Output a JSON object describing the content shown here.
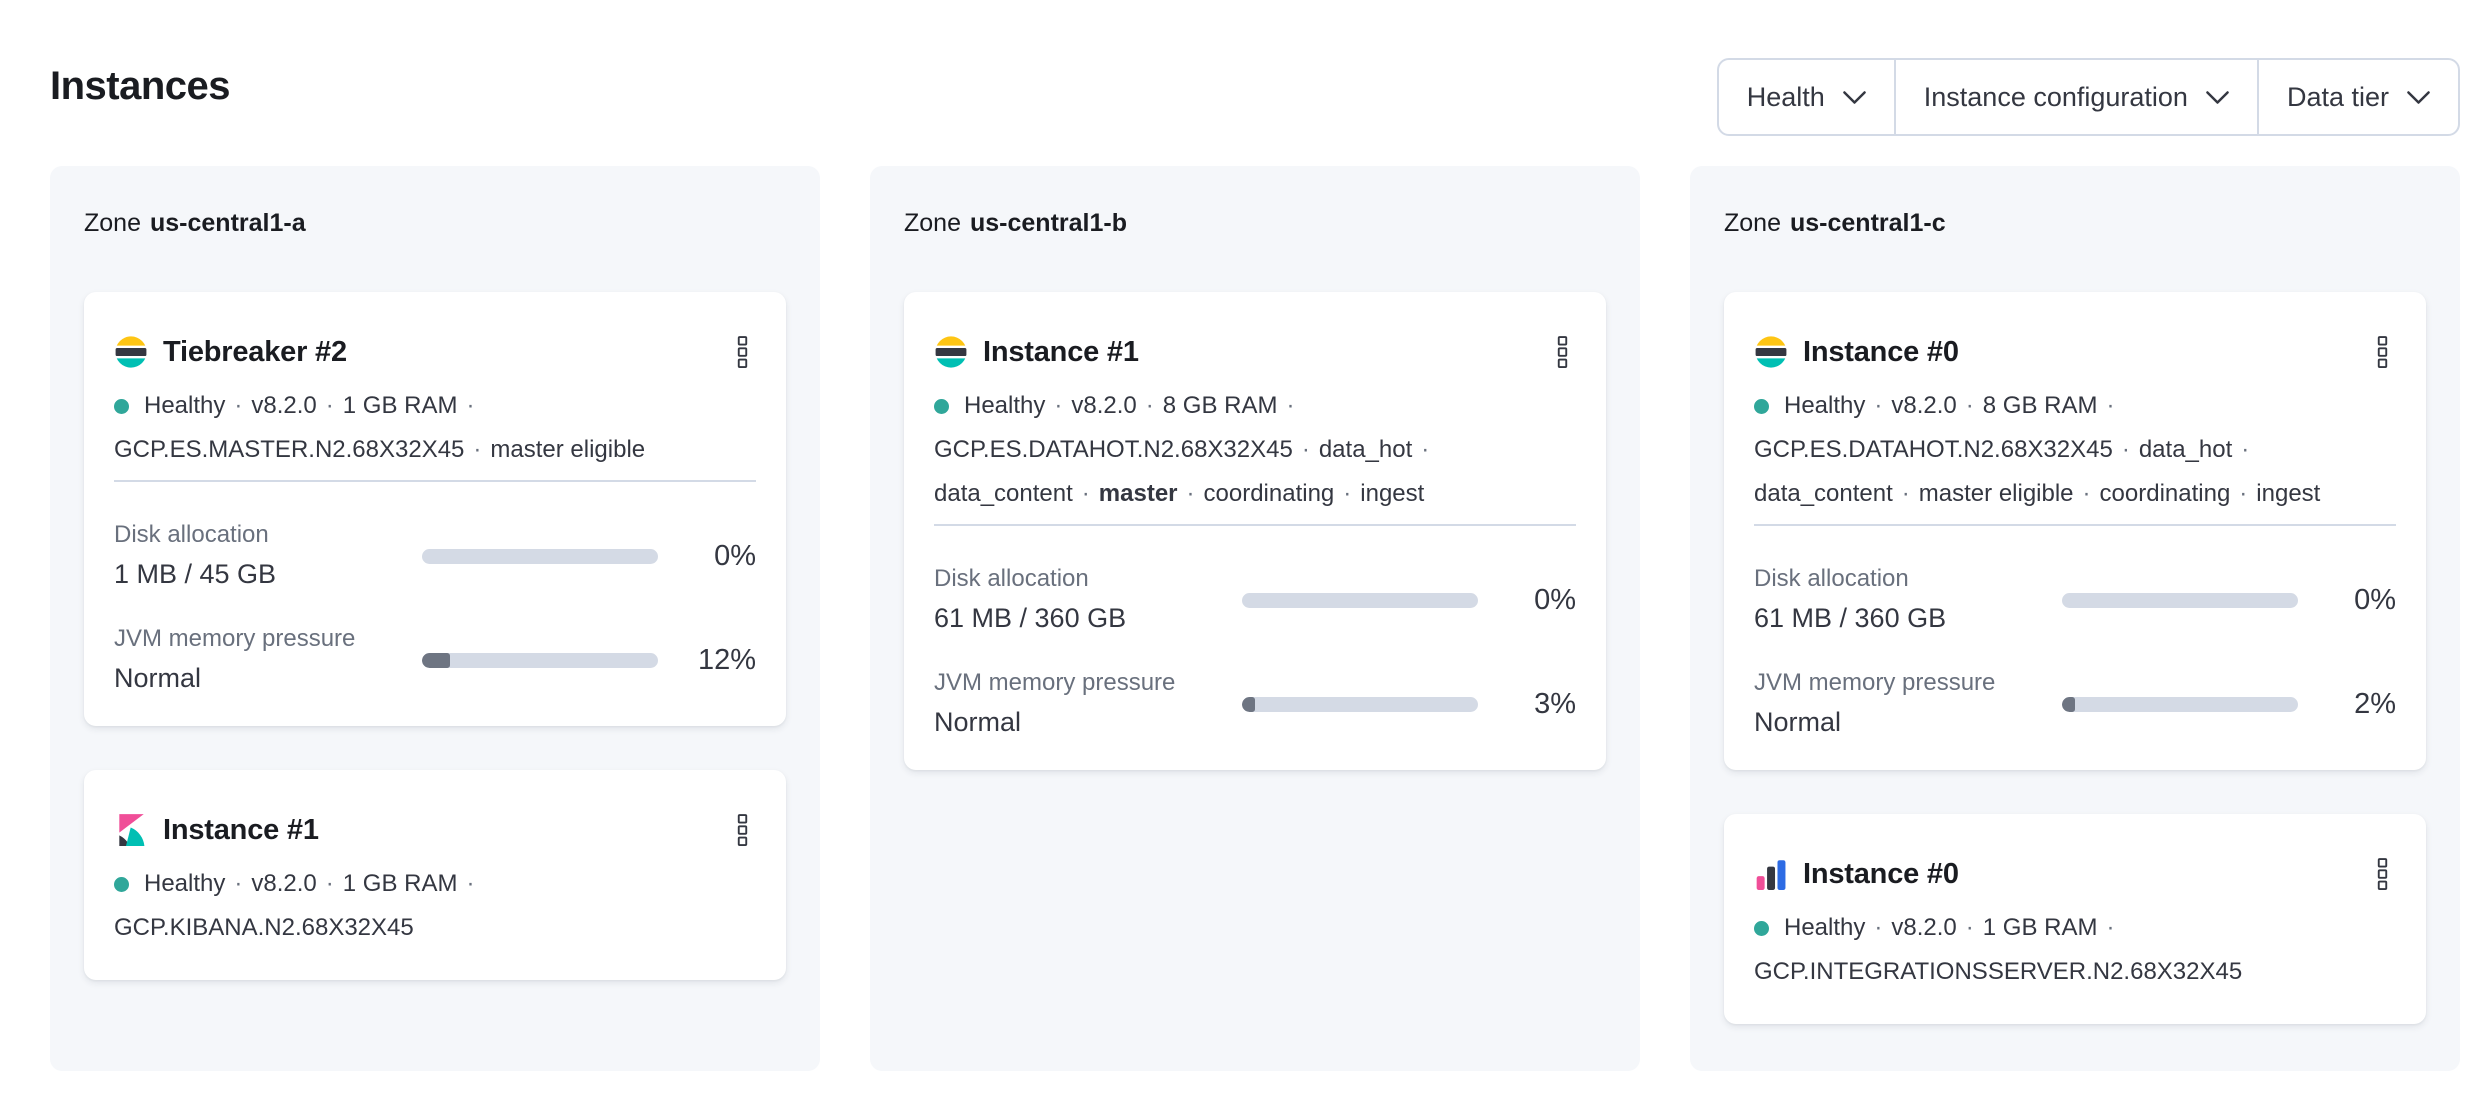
{
  "page": {
    "title": "Instances"
  },
  "separator": "·",
  "colors": {
    "health": "#30a79a",
    "bar_track": "#d4dae5",
    "bar_fill": "#6e7582",
    "pink": "#f04e98",
    "teal": "#00bfb3",
    "yellow": "#fec514",
    "blue": "#2d6be4",
    "dark": "#343741"
  },
  "filters": [
    {
      "label": "Health"
    },
    {
      "label": "Instance configuration"
    },
    {
      "label": "Data tier"
    }
  ],
  "zones": [
    {
      "label_prefix": "Zone",
      "name": "us-central1-a",
      "cards": [
        {
          "logo": "elasticsearch",
          "title": "Tiebreaker #2",
          "health": "Healthy",
          "status_lines": [
            [
              {
                "text": "Healthy"
              },
              {
                "text": "v8.2.0"
              },
              {
                "text": "1 GB RAM"
              }
            ],
            [
              {
                "text": "GCP.ES.MASTER.N2.68X32X45"
              },
              {
                "text": "master eligible"
              }
            ]
          ],
          "metrics": [
            {
              "label": "Disk allocation",
              "value": "1 MB / 45 GB",
              "percent": "0%",
              "fill_pct": 0
            },
            {
              "label": "JVM memory pressure",
              "value": "Normal",
              "percent": "12%",
              "fill_pct": 12
            }
          ]
        },
        {
          "logo": "kibana",
          "title": "Instance #1",
          "health": "Healthy",
          "status_lines": [
            [
              {
                "text": "Healthy"
              },
              {
                "text": "v8.2.0"
              },
              {
                "text": "1 GB RAM"
              }
            ],
            [
              {
                "text": "GCP.KIBANA.N2.68X32X45"
              }
            ]
          ],
          "metrics": []
        }
      ]
    },
    {
      "label_prefix": "Zone",
      "name": "us-central1-b",
      "cards": [
        {
          "logo": "elasticsearch",
          "title": "Instance #1",
          "health": "Healthy",
          "status_lines": [
            [
              {
                "text": "Healthy"
              },
              {
                "text": "v8.2.0"
              },
              {
                "text": "8 GB RAM"
              }
            ],
            [
              {
                "text": "GCP.ES.DATAHOT.N2.68X32X45"
              },
              {
                "text": "data_hot"
              }
            ],
            [
              {
                "text": "data_content"
              },
              {
                "text": "master",
                "bold": true
              },
              {
                "text": "coordinating"
              },
              {
                "text": "ingest"
              }
            ]
          ],
          "metrics": [
            {
              "label": "Disk allocation",
              "value": "61 MB / 360 GB",
              "percent": "0%",
              "fill_pct": 0
            },
            {
              "label": "JVM memory pressure",
              "value": "Normal",
              "percent": "3%",
              "fill_pct": 3
            }
          ]
        }
      ]
    },
    {
      "label_prefix": "Zone",
      "name": "us-central1-c",
      "cards": [
        {
          "logo": "elasticsearch",
          "title": "Instance #0",
          "health": "Healthy",
          "status_lines": [
            [
              {
                "text": "Healthy"
              },
              {
                "text": "v8.2.0"
              },
              {
                "text": "8 GB RAM"
              }
            ],
            [
              {
                "text": "GCP.ES.DATAHOT.N2.68X32X45"
              },
              {
                "text": "data_hot"
              }
            ],
            [
              {
                "text": "data_content"
              },
              {
                "text": "master eligible"
              },
              {
                "text": "coordinating"
              },
              {
                "text": "ingest"
              }
            ]
          ],
          "metrics": [
            {
              "label": "Disk allocation",
              "value": "61 MB / 360 GB",
              "percent": "0%",
              "fill_pct": 0
            },
            {
              "label": "JVM memory pressure",
              "value": "Normal",
              "percent": "2%",
              "fill_pct": 2
            }
          ]
        },
        {
          "logo": "integrations_server",
          "title": "Instance #0",
          "health": "Healthy",
          "status_lines": [
            [
              {
                "text": "Healthy"
              },
              {
                "text": "v8.2.0"
              },
              {
                "text": "1 GB RAM"
              }
            ],
            [
              {
                "text": "GCP.INTEGRATIONSSERVER.N2.68X32X45"
              }
            ]
          ],
          "metrics": []
        }
      ]
    }
  ]
}
